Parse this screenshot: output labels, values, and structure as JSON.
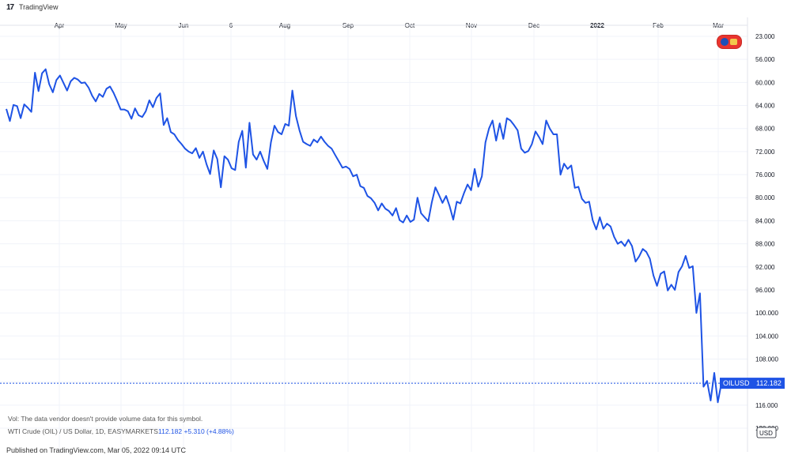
{
  "header": {
    "logo_text": "17",
    "brand": "TradingView"
  },
  "footer": {
    "published": "Published on TradingView.com, Mar 05, 2022 09:14 UTC"
  },
  "legend": {
    "line1": "Vol: The data vendor doesn't provide volume data for this symbol.",
    "line2_prefix": "WTI Crude (OIL) / US Dollar, 1D, EASYMARKETS",
    "line2_values": "112.182  +5.310 (+4.88%)"
  },
  "badges": {
    "price_tag_symbol": "OILUSD",
    "price_tag_value": "112.182",
    "currency": "USD",
    "accent_color": "#1e53e5",
    "flag_colors": [
      "#e9342f",
      "#1d4fb8",
      "#f2c94c"
    ]
  },
  "chart_data": {
    "type": "line",
    "title": "",
    "xlabel": "",
    "ylabel": "",
    "y_axis_inverted": true,
    "ylim": [
      23.0,
      120.0
    ],
    "x_ticks": [
      "Apr",
      "May",
      "Jun",
      "6",
      "Aug",
      "Sep",
      "Oct",
      "Nov",
      "Dec",
      "2022",
      "Feb",
      "Mar"
    ],
    "y_ticks": [
      "23.000",
      "56.000",
      "60.000",
      "64.000",
      "68.000",
      "72.000",
      "76.000",
      "80.000",
      "84.000",
      "88.000",
      "92.000",
      "96.000",
      "100.000",
      "104.000",
      "108.000",
      "112.000",
      "116.000",
      "120.000"
    ],
    "y_tick_values": [
      23,
      56,
      60,
      64,
      68,
      72,
      76,
      80,
      84,
      88,
      92,
      96,
      100,
      104,
      108,
      112,
      116,
      120
    ],
    "series": [
      {
        "values": [
          64.6,
          66.7,
          63.9,
          64.1,
          66.2,
          63.8,
          64.4,
          65.1,
          58.3,
          61.5,
          58.4,
          57.7,
          60.3,
          61.7,
          59.6,
          58.8,
          60.1,
          61.4,
          59.8,
          59.2,
          59.5,
          60.1,
          60.0,
          60.9,
          62.3,
          63.3,
          62.0,
          62.5,
          61.1,
          60.7,
          61.8,
          63.2,
          64.7,
          64.7,
          65.0,
          66.3,
          64.5,
          65.7,
          66.0,
          65.0,
          63.1,
          64.3,
          62.7,
          61.9,
          67.4,
          66.2,
          68.6,
          69.0,
          70.0,
          70.7,
          71.5,
          72.0,
          72.3,
          71.4,
          73.1,
          72.0,
          74.2,
          75.9,
          71.8,
          73.3,
          78.2,
          72.8,
          73.4,
          74.9,
          75.2,
          70.3,
          68.4,
          74.8,
          67.0,
          72.5,
          73.4,
          72.0,
          73.6,
          75.0,
          70.4,
          67.5,
          68.6,
          69.0,
          67.2,
          67.5,
          61.4,
          65.8,
          68.3,
          70.3,
          70.7,
          71.0,
          69.9,
          70.4,
          69.4,
          70.3,
          71.0,
          71.5,
          72.6,
          73.7,
          74.8,
          74.6,
          75.0,
          76.3,
          76.0,
          78.0,
          78.3,
          79.7,
          80.1,
          80.9,
          82.2,
          81.0,
          81.9,
          82.3,
          83.1,
          81.8,
          83.9,
          84.3,
          83.1,
          84.2,
          83.8,
          80.0,
          82.7,
          83.4,
          84.1,
          80.8,
          78.2,
          79.5,
          80.9,
          79.7,
          81.5,
          83.8,
          80.7,
          81.0,
          79.2,
          77.7,
          78.7,
          75.0,
          78.1,
          76.3,
          70.4,
          68.0,
          66.6,
          70.1,
          67.1,
          69.8,
          66.2,
          66.6,
          67.4,
          68.3,
          71.5,
          72.2,
          71.9,
          70.7,
          68.5,
          69.5,
          70.7,
          66.6,
          68.0,
          69.0,
          69.0,
          76.0,
          74.1,
          75.0,
          74.4,
          78.3,
          78.1,
          80.2,
          80.9,
          80.7,
          83.9,
          85.5,
          83.4,
          85.4,
          84.5,
          85.0,
          86.8,
          88.0,
          87.6,
          88.4,
          87.3,
          88.4,
          91.1,
          90.2,
          88.9,
          89.4,
          90.6,
          93.5,
          95.3,
          93.2,
          92.8,
          96.1,
          95.1,
          96.0,
          92.9,
          91.9,
          90.1,
          92.2,
          91.9,
          100.0,
          96.6,
          112.8,
          111.8,
          115.2,
          110.4,
          115.5,
          112.2
        ]
      }
    ]
  }
}
